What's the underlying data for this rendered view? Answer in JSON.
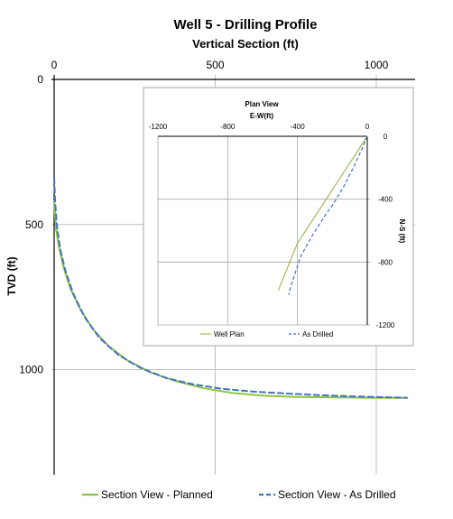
{
  "chart_data": [
    {
      "type": "line",
      "title": "Well 5 - Drilling Profile",
      "xlabel": "Vertical Section (ft)",
      "ylabel": "TVD (ft)",
      "xlim": [
        0,
        1100
      ],
      "ylim": [
        0,
        1360
      ],
      "y_inverted": true,
      "x_axis_position": "top",
      "x_ticks": [
        "0",
        "500",
        "1000"
      ],
      "y_ticks": [
        "0",
        "500",
        "1000"
      ],
      "grid": true,
      "legend_position": "bottom",
      "series": [
        {
          "name": "Section View - Planned",
          "color": "#8dc63f",
          "dash": "solid",
          "points": [
            [
              0,
              420
            ],
            [
              5,
              510
            ],
            [
              15,
              580
            ],
            [
              30,
              650
            ],
            [
              50,
              720
            ],
            [
              80,
              790
            ],
            [
              120,
              860
            ],
            [
              170,
              920
            ],
            [
              230,
              970
            ],
            [
              300,
              1010
            ],
            [
              380,
              1040
            ],
            [
              460,
              1063
            ],
            [
              550,
              1080
            ],
            [
              650,
              1090
            ],
            [
              750,
              1094
            ],
            [
              900,
              1096
            ],
            [
              1000,
              1097
            ],
            [
              1095,
              1097
            ]
          ]
        },
        {
          "name": "Section View - As Drilled",
          "color": "#4472c4",
          "dash": "dashed",
          "points": [
            [
              0,
              340
            ],
            [
              3,
              420
            ],
            [
              8,
              500
            ],
            [
              18,
              580
            ],
            [
              35,
              660
            ],
            [
              60,
              740
            ],
            [
              95,
              820
            ],
            [
              140,
              890
            ],
            [
              200,
              950
            ],
            [
              270,
              995
            ],
            [
              350,
              1030
            ],
            [
              430,
              1050
            ],
            [
              520,
              1066
            ],
            [
              620,
              1076
            ],
            [
              720,
              1082
            ],
            [
              820,
              1088
            ],
            [
              950,
              1093
            ],
            [
              1095,
              1097
            ]
          ]
        }
      ]
    },
    {
      "type": "line",
      "title": "Plan View",
      "xlabel": "E-W(ft)",
      "ylabel": "N-S (ft)",
      "xlim": [
        -1200,
        0
      ],
      "ylim": [
        -1200,
        0
      ],
      "x_axis_position": "top",
      "y_axis_position": "right",
      "x_ticks": [
        "-1200",
        "-800",
        "-400",
        "0"
      ],
      "y_ticks": [
        "0",
        "-400",
        "-800",
        "-1200"
      ],
      "grid": true,
      "legend_position": "bottom",
      "series": [
        {
          "name": "Well Plan",
          "color": "#9bbb59",
          "dash": "solid",
          "points": [
            [
              0,
              0
            ],
            [
              -100,
              -170
            ],
            [
              -200,
              -340
            ],
            [
              -300,
              -510
            ],
            [
              -400,
              -680
            ],
            [
              -510,
              -980
            ]
          ]
        },
        {
          "name": "As Drilled",
          "color": "#4472c4",
          "dash": "dashed",
          "points": [
            [
              0,
              0
            ],
            [
              -30,
              -80
            ],
            [
              -80,
              -200
            ],
            [
              -140,
              -330
            ],
            [
              -200,
              -440
            ],
            [
              -240,
              -500
            ],
            [
              -320,
              -640
            ],
            [
              -380,
              -760
            ],
            [
              -440,
              -960
            ],
            [
              -450,
              -1010
            ]
          ]
        }
      ]
    }
  ]
}
